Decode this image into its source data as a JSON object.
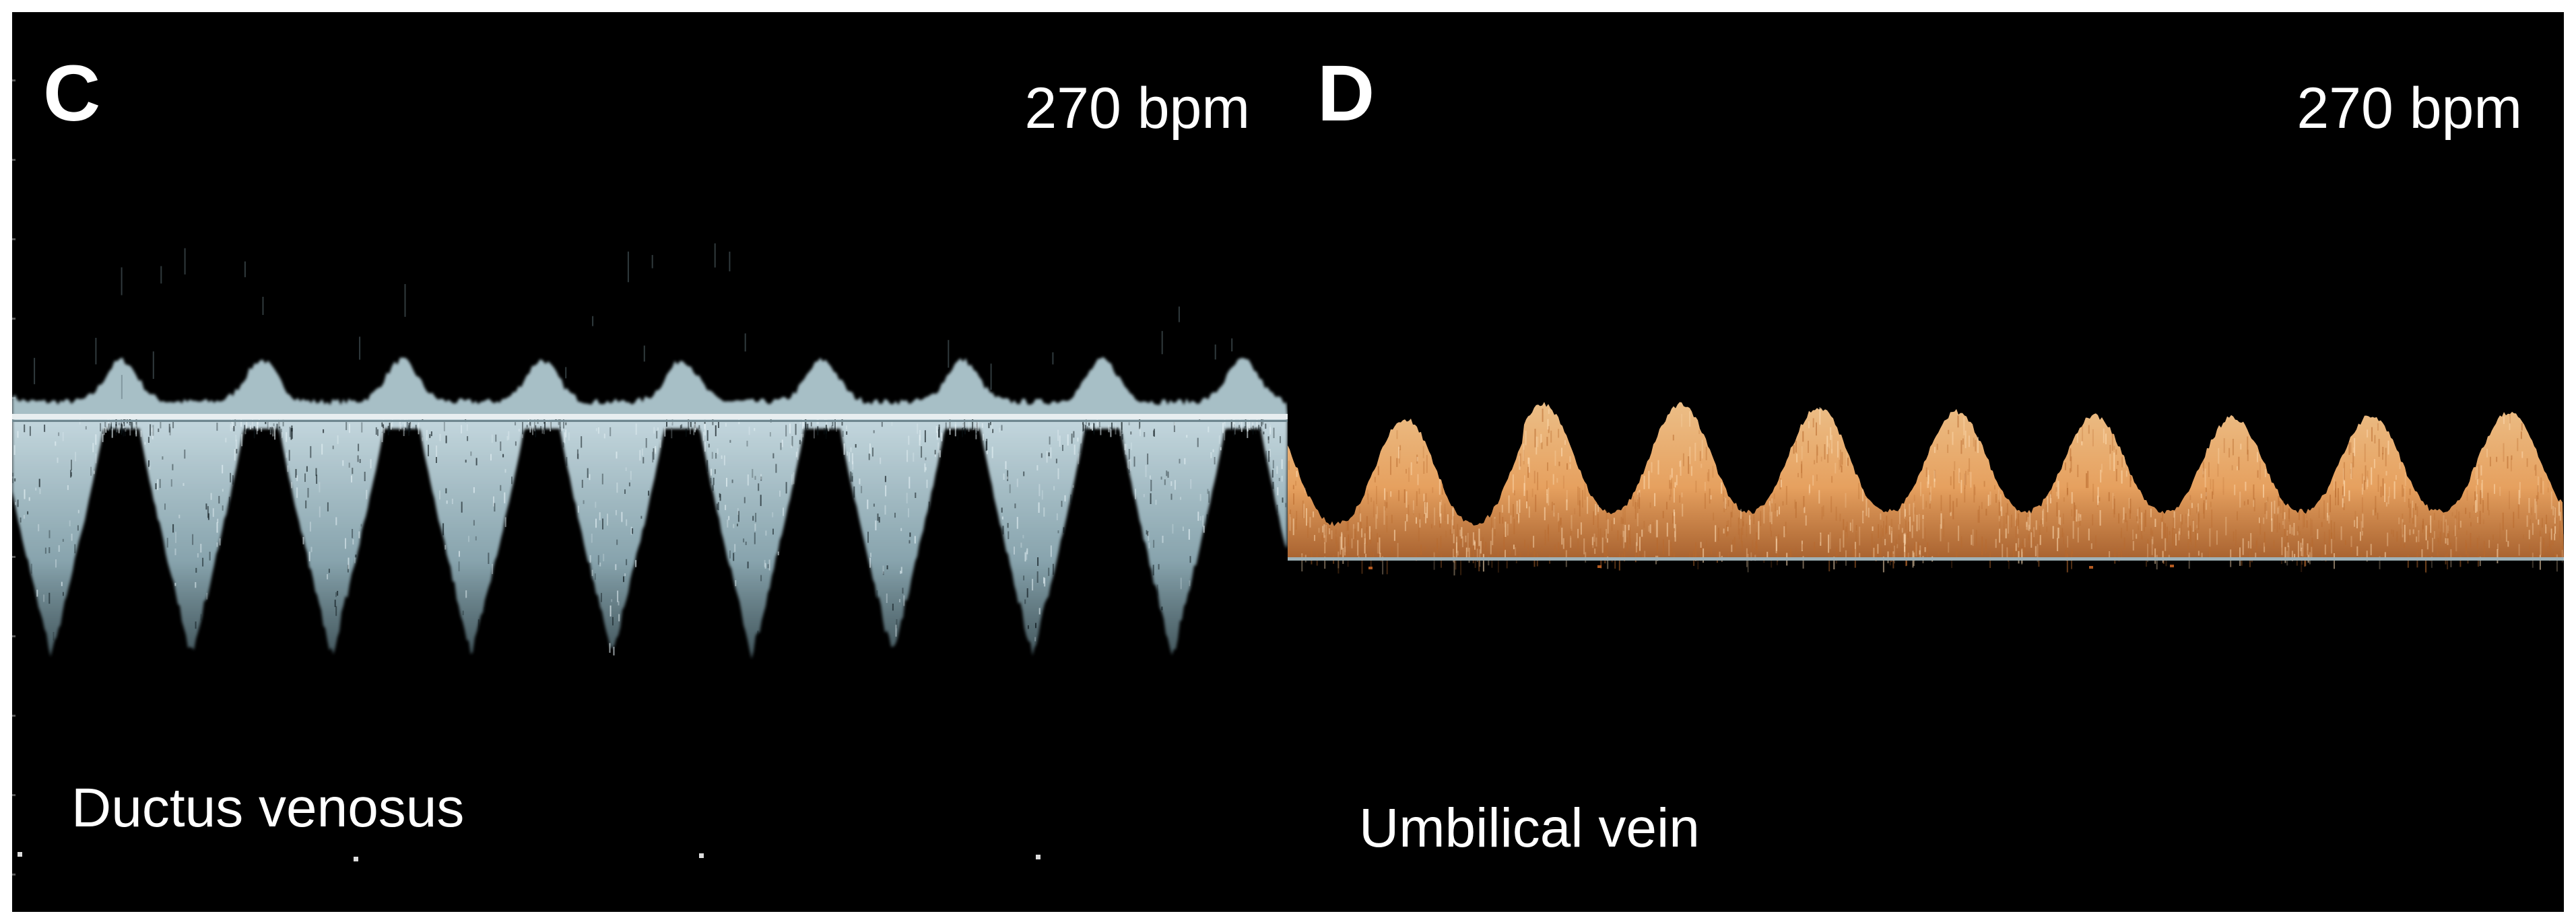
{
  "figure": {
    "panels": [
      {
        "letter": "C",
        "heart_rate": "270 bpm",
        "vessel": "Ductus venosus",
        "color": "#a9c9d3",
        "waveform": "ductus-venosus-doppler",
        "cycles": 9
      },
      {
        "letter": "D",
        "heart_rate": "270 bpm",
        "vessel": "Umbilical vein",
        "color": "#f3ac68",
        "waveform": "umbilical-vein-doppler",
        "cycles": 9
      }
    ]
  }
}
